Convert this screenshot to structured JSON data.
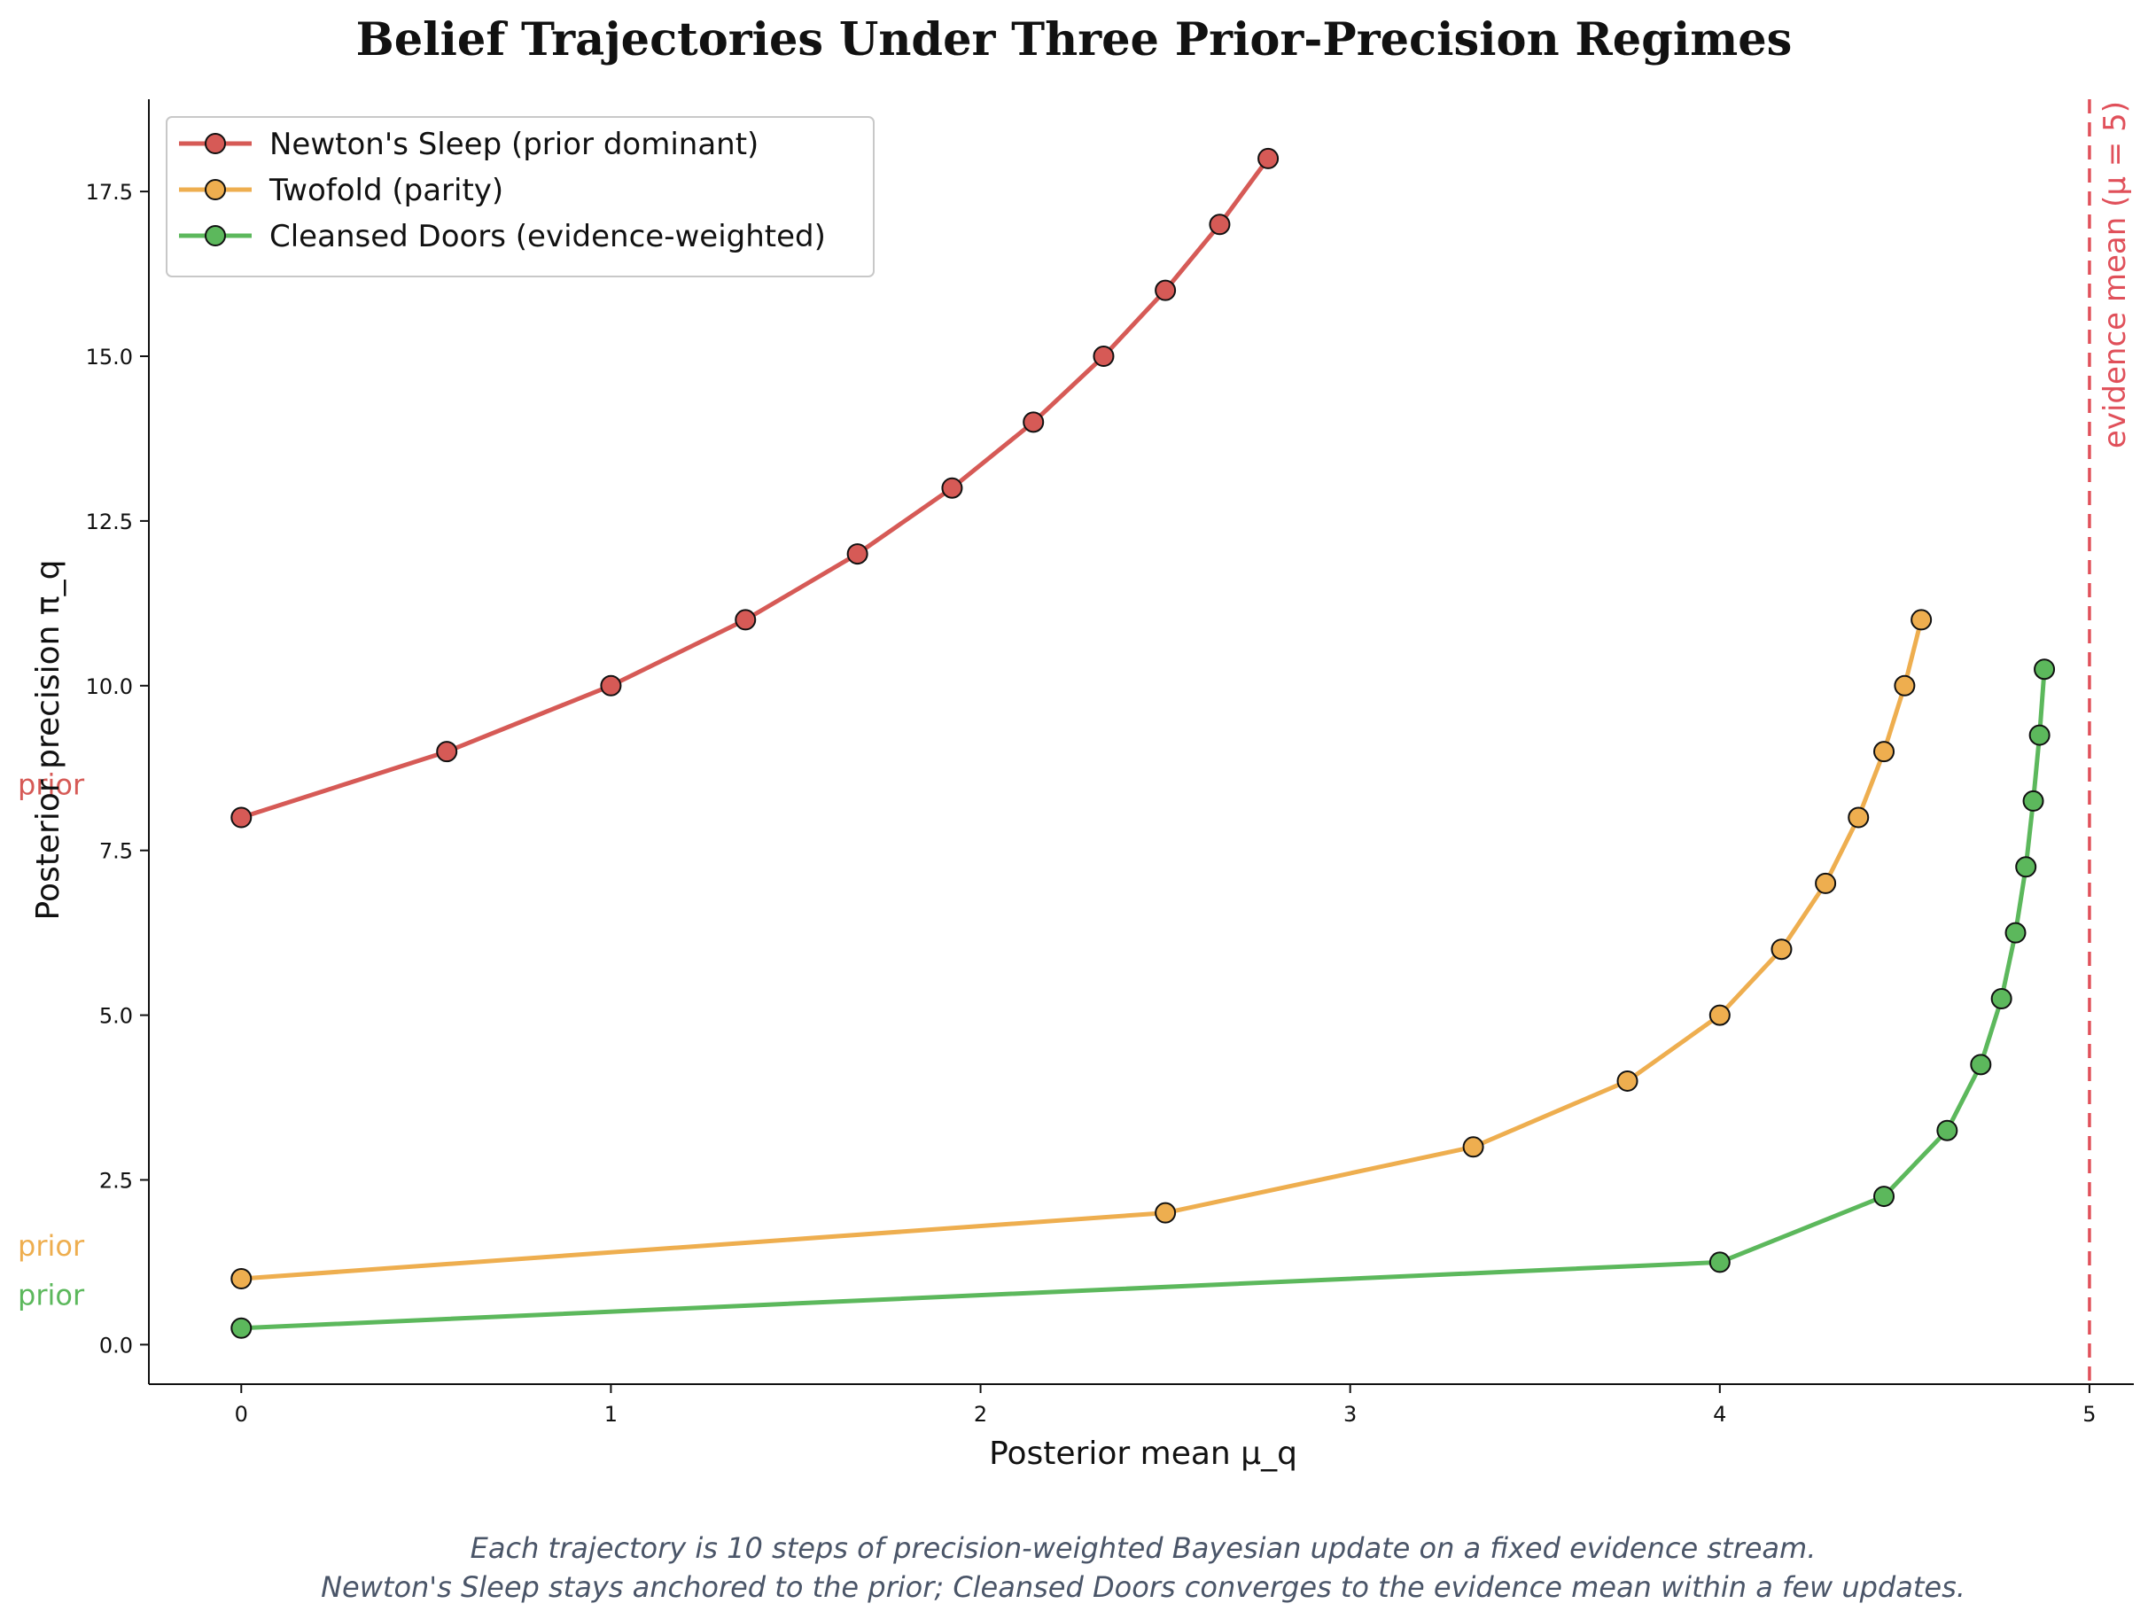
{
  "chart_data": {
    "type": "line",
    "title": "Belief Trajectories Under Three Prior-Precision Regimes",
    "xlabel": "Posterior mean µ_q",
    "ylabel": "Posterior precision π_q",
    "xlim": [
      -0.25,
      5.12
    ],
    "ylim": [
      -0.6,
      18.9
    ],
    "x_ticks": [
      0,
      1,
      2,
      3,
      4,
      5
    ],
    "x_tick_labels": [
      "0",
      "1",
      "2",
      "3",
      "4",
      "5"
    ],
    "y_ticks": [
      0,
      2.5,
      5,
      7.5,
      10,
      12.5,
      15,
      17.5
    ],
    "y_tick_labels": [
      "0.0",
      "2.5",
      "5.0",
      "7.5",
      "10.0",
      "12.5",
      "15.0",
      "17.5"
    ],
    "grid": false,
    "legend_position": "top-left",
    "series": [
      {
        "name": "Newton's Sleep (prior dominant)",
        "color": "#d65a56",
        "x": [
          0,
          0.556,
          1.0,
          1.364,
          1.667,
          1.923,
          2.143,
          2.333,
          2.5,
          2.647,
          2.778
        ],
        "y": [
          8,
          9,
          10,
          11,
          12,
          13,
          14,
          15,
          16,
          17,
          18
        ]
      },
      {
        "name": "Twofold (parity)",
        "color": "#eeae4f",
        "x": [
          0,
          2.5,
          3.333,
          3.75,
          4.0,
          4.167,
          4.286,
          4.375,
          4.444,
          4.5,
          4.545
        ],
        "y": [
          1,
          2,
          3,
          4,
          5,
          6,
          7,
          8,
          9,
          10,
          11
        ]
      },
      {
        "name": "Cleansed Doors (evidence-weighted)",
        "color": "#5cb85c",
        "x": [
          0,
          4.0,
          4.444,
          4.615,
          4.706,
          4.762,
          4.8,
          4.828,
          4.848,
          4.865,
          4.878
        ],
        "y": [
          0.25,
          1.25,
          2.25,
          3.25,
          4.25,
          5.25,
          6.25,
          7.25,
          8.25,
          9.25,
          10.25
        ]
      }
    ],
    "reference_line": {
      "x": 5,
      "label": "evidence mean (µ = 5)",
      "color": "#e0505a"
    },
    "prior_annotations": [
      {
        "text": "prior",
        "color": "#d65a56",
        "y": 8.5
      },
      {
        "text": "prior",
        "color": "#eeae4f",
        "y": 1.5
      },
      {
        "text": "prior",
        "color": "#5cb85c",
        "y": 0.75
      }
    ],
    "caption": [
      "Each trajectory is 10 steps of precision-weighted Bayesian update on a fixed evidence stream.",
      "Newton's Sleep stays anchored to the prior; Cleansed Doors converges to the evidence mean within a few updates."
    ]
  }
}
